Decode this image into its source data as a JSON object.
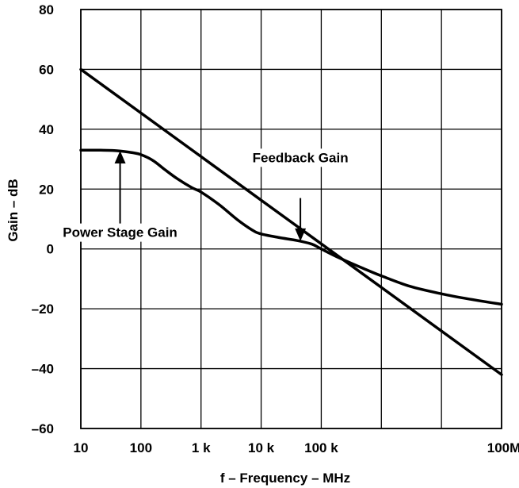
{
  "chart_data": {
    "type": "line",
    "x_scale": "log",
    "xlim": [
      10,
      100000000
    ],
    "ylim": [
      -60,
      80
    ],
    "grid": true,
    "xlabel": "f – Frequency –  MHz",
    "ylabel": "Gain – dB",
    "x_ticks": [
      {
        "value": 10,
        "label": "10"
      },
      {
        "value": 100,
        "label": "100"
      },
      {
        "value": 1000,
        "label": "1 k"
      },
      {
        "value": 10000,
        "label": "10 k"
      },
      {
        "value": 100000,
        "label": "100 k"
      },
      {
        "value": 100000000,
        "label": "100M"
      }
    ],
    "x_grid": [
      10,
      100,
      1000,
      10000,
      100000,
      1000000,
      10000000,
      100000000
    ],
    "y_ticks": [
      {
        "value": 80,
        "label": "80"
      },
      {
        "value": 60,
        "label": "60"
      },
      {
        "value": 40,
        "label": "40"
      },
      {
        "value": 20,
        "label": "20"
      },
      {
        "value": 0,
        "label": "0"
      },
      {
        "value": -20,
        "label": "–20"
      },
      {
        "value": -40,
        "label": "–40"
      },
      {
        "value": -60,
        "label": "–60"
      }
    ],
    "series": [
      {
        "key": "straight",
        "points": [
          [
            10,
            60
          ],
          [
            100000000,
            -42
          ]
        ]
      },
      {
        "key": "curved",
        "points": [
          [
            10,
            33
          ],
          [
            20,
            33
          ],
          [
            40,
            32.8
          ],
          [
            70,
            32.2
          ],
          [
            100,
            31.5
          ],
          [
            160,
            29.5
          ],
          [
            250,
            26.5
          ],
          [
            400,
            23.5
          ],
          [
            700,
            20.5
          ],
          [
            1000,
            19
          ],
          [
            2000,
            14.8
          ],
          [
            4000,
            9.8
          ],
          [
            7000,
            6.4
          ],
          [
            10000,
            5
          ],
          [
            20000,
            3.8
          ],
          [
            40000,
            2.8
          ],
          [
            70000,
            1.6
          ],
          [
            100000,
            0
          ],
          [
            200000,
            -3
          ],
          [
            500000,
            -6.5
          ],
          [
            1000000,
            -9
          ],
          [
            3000000,
            -12.5
          ],
          [
            10000000,
            -15
          ],
          [
            30000000,
            -16.8
          ],
          [
            100000000,
            -18.5
          ]
        ]
      }
    ],
    "annotations": [
      {
        "key": "power",
        "text": "Power Stage Gain",
        "text_at": [
          45,
          4
        ],
        "arrow_from": [
          45,
          4
        ],
        "arrow_to": [
          45,
          32.8
        ],
        "anchor": "middle"
      },
      {
        "key": "feedback",
        "text": "Feedback Gain",
        "text_at": [
          45000,
          29
        ],
        "arrow_from": [
          45000,
          17
        ],
        "arrow_to": [
          45000,
          2.6
        ],
        "anchor": "middle"
      }
    ]
  }
}
